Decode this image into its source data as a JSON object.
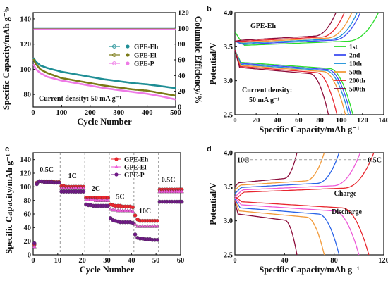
{
  "chart_data": [
    {
      "id": "a",
      "type": "line",
      "panel_label": "a",
      "xlabel": "Cycle Number",
      "ylabel": "Specific Capacity/mAh g⁻¹",
      "y2label": "Columbic Efficiency/%",
      "xlim": [
        0,
        500
      ],
      "ylim": [
        70,
        145
      ],
      "y2lim": [
        0,
        120
      ],
      "xticks": [
        0,
        100,
        200,
        300,
        400,
        500
      ],
      "yticks": [
        80,
        100,
        120,
        140
      ],
      "y2ticks": [
        0,
        20,
        40,
        60,
        80,
        100,
        120
      ],
      "annotation": "Current density: 50 mA g⁻¹",
      "legend_position": "center-right",
      "series": [
        {
          "name": "GPE-Eh",
          "color": "#1f8e95",
          "kind": "capacity",
          "x": [
            1,
            10,
            25,
            50,
            100,
            150,
            200,
            250,
            300,
            350,
            400,
            450,
            500
          ],
          "y": [
            109,
            106,
            103,
            101,
            98,
            96,
            94,
            92,
            90.5,
            89,
            88,
            86.5,
            85
          ]
        },
        {
          "name": "GPE-El",
          "color": "#7a7a16",
          "kind": "capacity",
          "x": [
            1,
            10,
            25,
            50,
            100,
            150,
            200,
            250,
            300,
            350,
            400,
            450,
            500
          ],
          "y": [
            108,
            104,
            100,
            97,
            93,
            91,
            89,
            87,
            85.5,
            84,
            83,
            81,
            79
          ]
        },
        {
          "name": "GPE-P",
          "color": "#ee7ae6",
          "kind": "capacity",
          "x": [
            1,
            10,
            25,
            50,
            100,
            150,
            200,
            250,
            300,
            350,
            400,
            450,
            500
          ],
          "y": [
            104,
            100,
            97,
            94,
            91,
            89,
            87,
            85,
            83.5,
            82,
            80.5,
            78.5,
            76
          ]
        },
        {
          "name": "",
          "color": "#1f8e95",
          "kind": "efficiency",
          "x": [
            1,
            500
          ],
          "y": [
            99.5,
            99.5
          ]
        },
        {
          "name": "",
          "color": "#7a7a16",
          "kind": "efficiency",
          "x": [
            1,
            500
          ],
          "y": [
            99.2,
            99.2
          ]
        },
        {
          "name": "",
          "color": "#ee7ae6",
          "kind": "efficiency",
          "x": [
            1,
            500
          ],
          "y": [
            98.8,
            98.8
          ]
        }
      ]
    },
    {
      "id": "b",
      "type": "line",
      "panel_label": "b",
      "xlabel": "Specific Capacity/mAh g⁻¹",
      "ylabel": "Potential/V",
      "xlim": [
        0,
        140
      ],
      "ylim": [
        2.5,
        4.0
      ],
      "xticks": [
        0,
        20,
        40,
        60,
        80,
        100,
        120,
        140
      ],
      "yticks": [
        2.5,
        3.0,
        3.5,
        4.0
      ],
      "title": "GPE-Eh",
      "annotation": "Current density:",
      "annotation2": "50 mA g⁻¹",
      "legend_position": "right",
      "series": [
        {
          "name": "1st",
          "color": "#2bdc2b",
          "charge_end": 135,
          "discharge_end": 111
        },
        {
          "name": "2nd",
          "color": "#3f4ff0",
          "charge_end": 118,
          "discharge_end": 109
        },
        {
          "name": "10th",
          "color": "#1a8fd8",
          "charge_end": 115,
          "discharge_end": 107
        },
        {
          "name": "50th",
          "color": "#f29a3a",
          "charge_end": 110,
          "discharge_end": 104
        },
        {
          "name": "200th",
          "color": "#e8262e",
          "charge_end": 103,
          "discharge_end": 96
        },
        {
          "name": "500th",
          "color": "#8c0c3a",
          "charge_end": 95,
          "discharge_end": 88
        }
      ]
    },
    {
      "id": "c",
      "type": "scatter",
      "panel_label": "c",
      "xlabel": "Cycle Number",
      "ylabel": "Specific Capacity/mAh g⁻¹",
      "xlim": [
        0,
        60
      ],
      "ylim": [
        0,
        150
      ],
      "xticks": [
        0,
        10,
        20,
        30,
        40,
        50,
        60
      ],
      "yticks": [
        0,
        20,
        40,
        60,
        80,
        100,
        120,
        140
      ],
      "rate_labels": [
        {
          "text": "0.5C",
          "x": 5.5,
          "y": 122
        },
        {
          "text": "1C",
          "x": 16,
          "y": 113
        },
        {
          "text": "2C",
          "x": 25.5,
          "y": 94
        },
        {
          "text": "5C",
          "x": 35.5,
          "y": 82
        },
        {
          "text": "10C",
          "x": 45.5,
          "y": 61
        },
        {
          "text": "0.5C",
          "x": 55,
          "y": 107
        }
      ],
      "dividers": [
        11,
        21,
        31,
        41,
        51
      ],
      "legend_position": "top-right",
      "series": [
        {
          "name": "GPE-Eh",
          "color": "#e8262e",
          "shape": "circle",
          "y": [
            15,
            106,
            108,
            108,
            108,
            108,
            108,
            108,
            107,
            107,
            107,
            101,
            101,
            100,
            100,
            100,
            100,
            100,
            100,
            100,
            100,
            84,
            84,
            84,
            84,
            84,
            84,
            84,
            84,
            84,
            84,
            74,
            73,
            72,
            72,
            72,
            71,
            71,
            71,
            71,
            70,
            58,
            52,
            50,
            50,
            50,
            50,
            50,
            50,
            50,
            50,
            96,
            96,
            96,
            96,
            96,
            96,
            96,
            96,
            96,
            96
          ]
        },
        {
          "name": "GPE-El",
          "color": "#ee5ad8",
          "shape": "triangle",
          "y": [
            12,
            106,
            108,
            108,
            108,
            107,
            107,
            107,
            107,
            107,
            107,
            98,
            98,
            98,
            98,
            98,
            98,
            98,
            98,
            98,
            98,
            81,
            81,
            81,
            81,
            80,
            80,
            80,
            80,
            80,
            80,
            67,
            66,
            66,
            65,
            65,
            65,
            65,
            65,
            65,
            64,
            45,
            42,
            42,
            42,
            42,
            42,
            42,
            42,
            42,
            42,
            93,
            93,
            93,
            93,
            93,
            93,
            93,
            93,
            93,
            93
          ]
        },
        {
          "name": "GPE-P",
          "color": "#6f1a86",
          "shape": "circle",
          "y": [
            17,
            104,
            108,
            108,
            107,
            107,
            107,
            107,
            106,
            106,
            106,
            93,
            93,
            93,
            93,
            93,
            93,
            93,
            93,
            93,
            93,
            74,
            73,
            73,
            72,
            72,
            72,
            72,
            72,
            72,
            72,
            54,
            51,
            50,
            49,
            48,
            48,
            48,
            48,
            48,
            47,
            30,
            25,
            24,
            24,
            23,
            23,
            23,
            22,
            22,
            22,
            78,
            78,
            78,
            78,
            78,
            78,
            78,
            78,
            78,
            78
          ]
        }
      ]
    },
    {
      "id": "d",
      "type": "line",
      "panel_label": "d",
      "xlabel": "Specific Capacity/mAh g⁻¹",
      "ylabel": "Potential/V",
      "xlim": [
        0,
        120
      ],
      "ylim": [
        2.5,
        4.0
      ],
      "xticks": [
        0,
        40,
        80,
        120
      ],
      "yticks": [
        2.5,
        3.0,
        3.5,
        4.0
      ],
      "arrow_left_label": "10C",
      "arrow_right_label": "0.5C",
      "charge_label": "Charge",
      "discharge_label": "Discharge",
      "series": [
        {
          "rate": "0.5C",
          "color": "#e8262e",
          "charge_end": 112,
          "discharge_end": 108
        },
        {
          "rate": "1C",
          "color": "#ee5ad8",
          "charge_end": 101,
          "discharge_end": 100
        },
        {
          "rate": "2C",
          "color": "#2a64e8",
          "charge_end": 84,
          "discharge_end": 84
        },
        {
          "rate": "5C",
          "color": "#f29a3a",
          "charge_end": 72,
          "discharge_end": 72
        },
        {
          "rate": "10C",
          "color": "#8c0c3a",
          "charge_end": 50,
          "discharge_end": 50
        }
      ]
    }
  ]
}
